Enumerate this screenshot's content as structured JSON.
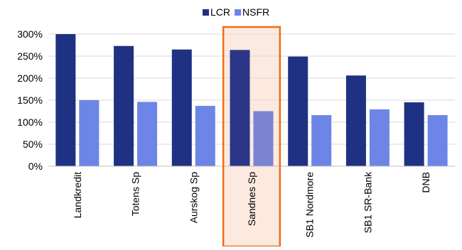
{
  "chart_data": {
    "type": "bar",
    "categories": [
      "Landkredit",
      "Totens Sp",
      "Aurskog Sp",
      "Sandnes Sp",
      "SB1 Nordmore",
      "SB1 SR-Bank",
      "DNB"
    ],
    "series": [
      {
        "name": "LCR",
        "values": [
          300,
          273,
          265,
          264,
          249,
          206,
          145
        ],
        "color": "#1F3182"
      },
      {
        "name": "NSFR",
        "values": [
          150,
          146,
          137,
          125,
          116,
          129,
          116
        ],
        "color": "#6C85E6"
      }
    ],
    "highlight": {
      "category": "Sandnes Sp",
      "fill": "#FCEAE0",
      "border": "#F06A18",
      "series_colors": {
        "LCR": "#2B3786",
        "NSFR": "#7A84D2"
      }
    },
    "ylim": [
      0,
      300
    ],
    "yticks": [
      0,
      50,
      100,
      150,
      200,
      250,
      300
    ],
    "ytick_labels": [
      "0%",
      "50%",
      "100%",
      "150%",
      "200%",
      "250%",
      "300%"
    ],
    "grid": true,
    "legend_position": "top-center",
    "title": "",
    "xlabel": "",
    "ylabel": ""
  }
}
